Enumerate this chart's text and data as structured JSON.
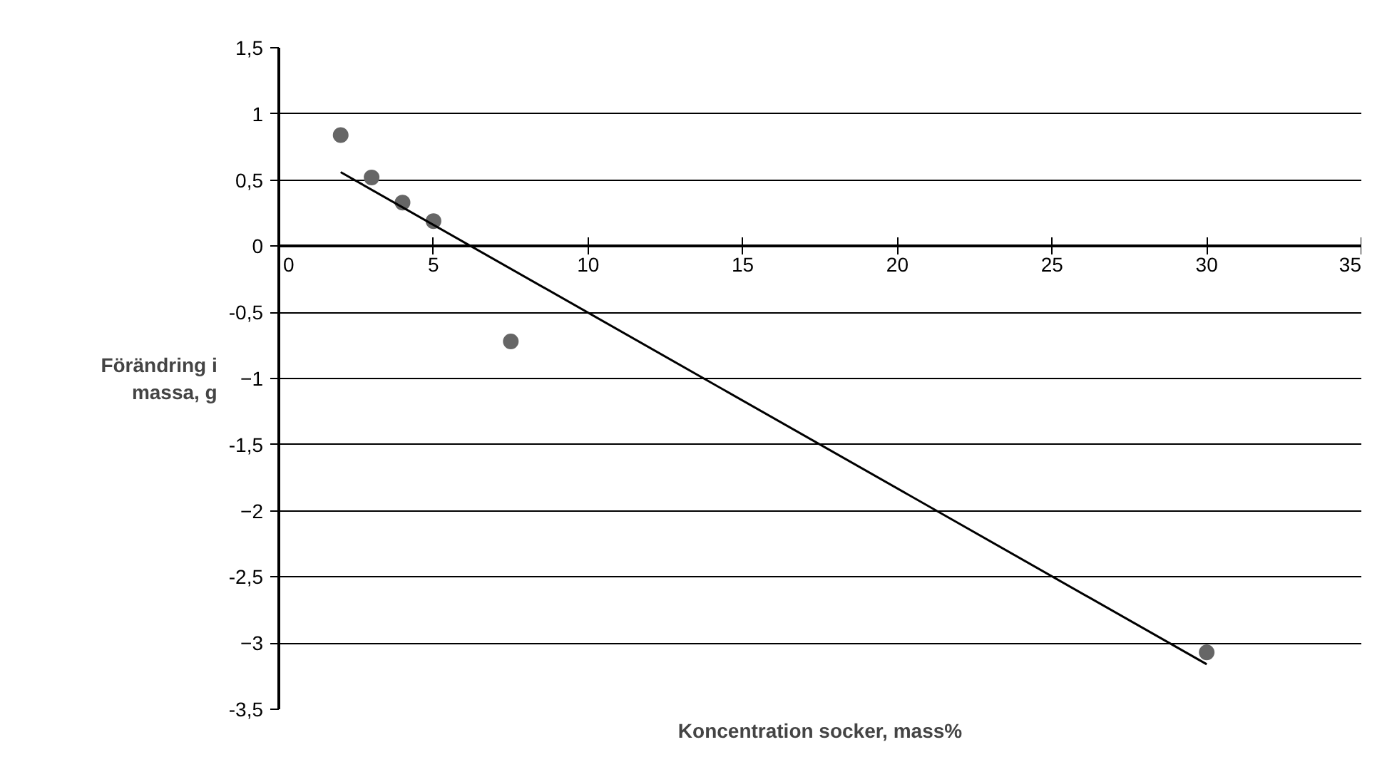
{
  "chart_data": {
    "type": "scatter",
    "xlabel": "Koncentration socker, mass%",
    "ylabel": "Förändring i\nmassa, g",
    "series": [
      {
        "color": "#666666",
        "marker": "circle",
        "x": [
          2,
          3,
          4,
          5,
          7.5,
          30
        ],
        "values": [
          0.84,
          0.52,
          0.33,
          0.19,
          -0.72,
          -3.07
        ]
      },
      {
        "type": "line",
        "marker": "none",
        "color": "#000000",
        "x": [
          2,
          30
        ],
        "values": [
          0.56,
          -3.16
        ]
      }
    ],
    "xlim": [
      0,
      35
    ],
    "xticks": [
      0,
      5,
      10,
      15,
      20,
      25,
      30,
      35
    ],
    "ylim": [
      -3.5,
      1.5
    ],
    "yticks": [
      {
        "value": -3.5,
        "label": "-3,5"
      },
      -3,
      {
        "value": -2.5,
        "label": "-2,5"
      },
      -2,
      {
        "value": -1.5,
        "label": "-1,5"
      },
      -1,
      {
        "value": -0.5,
        "label": "-0,5"
      },
      0,
      {
        "value": 0.5,
        "label": "0,5"
      },
      1,
      {
        "value": 1.5,
        "label": "1,5"
      }
    ],
    "grid": "y",
    "line_style": "solid"
  }
}
